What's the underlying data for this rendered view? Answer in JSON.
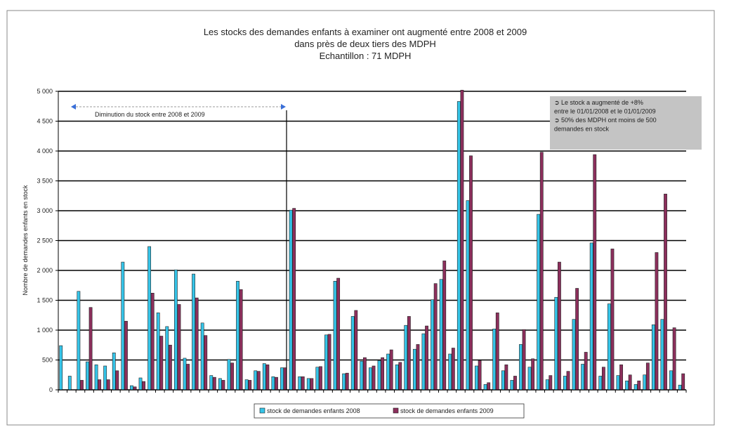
{
  "chart_data": {
    "type": "bar",
    "title": [
      "Les stocks des demandes enfants à examiner ont augmenté entre 2008 et 2009",
      "dans près de deux tiers des MDPH",
      "Echantillon : 71 MDPH"
    ],
    "y_label": "Nombre de demandes enfants en stock",
    "categories": [
      null,
      null,
      null,
      null,
      null,
      null,
      null,
      null,
      null,
      null,
      null,
      null,
      null,
      null,
      null,
      null,
      null,
      null,
      null,
      null,
      null,
      null,
      null,
      null,
      null,
      null,
      null,
      null,
      null,
      null,
      null,
      null,
      null,
      null,
      null,
      null,
      null,
      null,
      null,
      null,
      null,
      null,
      null,
      null,
      null,
      null,
      null,
      null,
      null,
      null,
      null,
      null,
      null,
      null,
      null,
      null,
      null,
      null,
      null,
      null,
      null,
      null,
      null,
      null,
      null,
      null,
      null,
      null,
      null,
      null,
      null
    ],
    "series": [
      {
        "name": "stock de demandes enfants 2008",
        "color": "#35c4e8",
        "values": [
          740,
          230,
          1650,
          470,
          420,
          400,
          620,
          2140,
          70,
          200,
          2400,
          1290,
          1060,
          2010,
          530,
          1940,
          1120,
          240,
          190,
          510,
          1820,
          170,
          320,
          440,
          220,
          370,
          3010,
          220,
          190,
          380,
          920,
          1820,
          270,
          1230,
          480,
          370,
          490,
          600,
          420,
          1080,
          680,
          940,
          1510,
          1850,
          600,
          4830,
          3170,
          400,
          90,
          1020,
          320,
          160,
          760,
          380,
          2940,
          170,
          1550,
          230,
          1180,
          430,
          2460,
          230,
          1440,
          240,
          150,
          90,
          250,
          1090,
          1180,
          320,
          80
        ]
      },
      {
        "name": "stock de demandes enfants 2009",
        "color": "#8c2f5c",
        "values": [
          0,
          0,
          160,
          1380,
          170,
          170,
          320,
          1150,
          50,
          140,
          1620,
          900,
          750,
          1430,
          430,
          1540,
          910,
          210,
          160,
          450,
          1680,
          160,
          310,
          420,
          210,
          370,
          3040,
          220,
          190,
          390,
          930,
          1870,
          280,
          1330,
          540,
          400,
          540,
          670,
          460,
          1230,
          760,
          1070,
          1780,
          2160,
          700,
          5020,
          3920,
          490,
          120,
          1290,
          420,
          230,
          1010,
          520,
          3980,
          240,
          2140,
          310,
          1700,
          630,
          3940,
          380,
          2360,
          420,
          250,
          150,
          450,
          2300,
          3280,
          1040,
          270
        ]
      }
    ],
    "ylim": [
      0,
      5000
    ],
    "yticks": [
      0,
      500,
      {
        "value": 1000,
        "label": "1 000"
      },
      {
        "value": 1500,
        "label": "1 500"
      },
      {
        "value": 2000,
        "label": "2 000"
      },
      {
        "value": 2500,
        "label": "2 500"
      },
      {
        "value": 3000,
        "label": "3 000"
      },
      {
        "value": 3500,
        "label": "3 500"
      },
      {
        "value": 4000,
        "label": "4 000"
      },
      {
        "value": 4500,
        "label": "4 500"
      },
      {
        "value": 5000,
        "label": "5 000"
      }
    ],
    "grid": true,
    "annotations": {
      "arrow_text": "Diminution du stock entre 2008 et 2009",
      "box_lines": [
        "➲ Le stock a augmenté de +8%",
        "entre le 01/01/2008 et  le 01/01/2009",
        "➲ 50% des MDPH ont moins de 500",
        "demandes en stock"
      ]
    },
    "legend": "bottom"
  }
}
